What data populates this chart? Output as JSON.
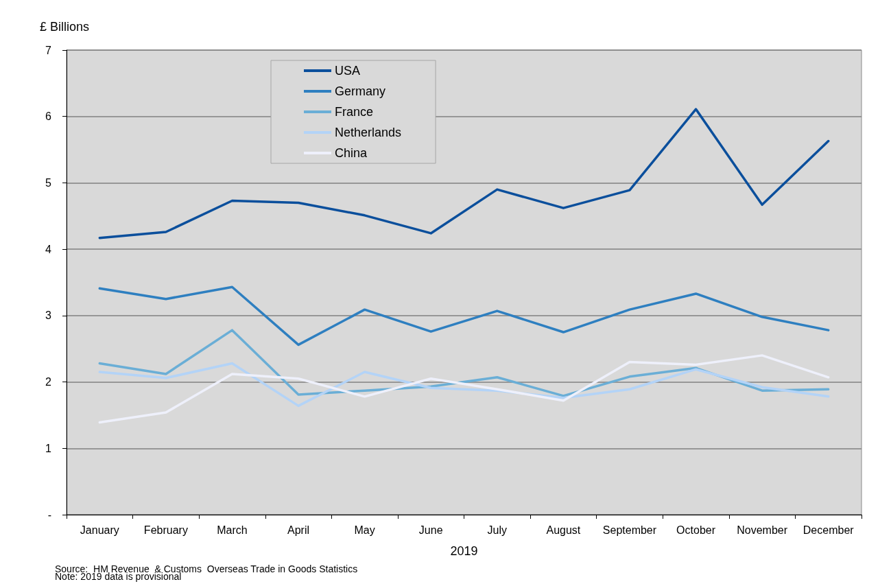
{
  "chart_data": {
    "type": "line",
    "ylabel": "£ Billions",
    "xlabel": "2019",
    "categories": [
      "January",
      "February",
      "March",
      "April",
      "May",
      "June",
      "July",
      "August",
      "September",
      "October",
      "November",
      "December"
    ],
    "series": [
      {
        "name": "USA",
        "color": "#0b4f9c",
        "values": [
          4.17,
          4.26,
          4.73,
          4.7,
          4.51,
          4.24,
          4.9,
          4.62,
          4.89,
          6.11,
          4.67,
          5.63
        ]
      },
      {
        "name": "Germany",
        "color": "#2e7fc0",
        "values": [
          3.41,
          3.25,
          3.43,
          2.56,
          3.09,
          2.76,
          3.07,
          2.75,
          3.09,
          3.33,
          2.98,
          2.78
        ]
      },
      {
        "name": "France",
        "color": "#6aaed6",
        "values": [
          2.28,
          2.12,
          2.78,
          1.81,
          1.87,
          1.93,
          2.07,
          1.79,
          2.08,
          2.21,
          1.87,
          1.89
        ]
      },
      {
        "name": "Netherlands",
        "color": "#b3d3f7",
        "values": [
          2.15,
          2.06,
          2.28,
          1.64,
          2.15,
          1.91,
          1.87,
          1.76,
          1.89,
          2.19,
          1.92,
          1.78
        ]
      },
      {
        "name": "China",
        "color": "#eef0fb",
        "values": [
          1.39,
          1.54,
          2.12,
          2.05,
          1.78,
          2.05,
          1.89,
          1.72,
          2.3,
          2.26,
          2.4,
          2.07
        ]
      }
    ],
    "ylim": [
      0,
      7
    ],
    "yticks": [
      {
        "value": 0,
        "label": "-"
      },
      1,
      2,
      3,
      4,
      5,
      6,
      7
    ],
    "grid": "y",
    "legend": "top left",
    "marker": "none",
    "line_style": "solid",
    "annotations": [
      "Source:  HM Revenue  & Customs  Overseas Trade in Goods Statistics",
      "Note: 2019 data is provisional"
    ]
  }
}
